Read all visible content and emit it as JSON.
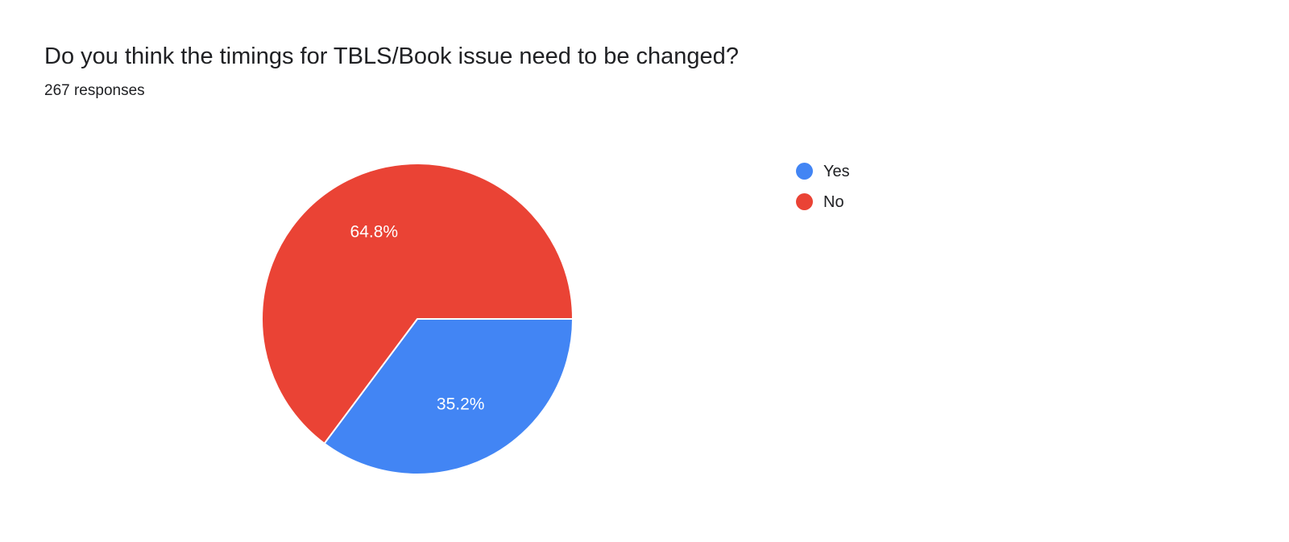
{
  "header": {
    "title": "Do you think the timings for TBLS/Book issue need to be changed?",
    "responses": "267 responses"
  },
  "chart_data": {
    "type": "pie",
    "title": "Do you think the timings for TBLS/Book issue need to be changed?",
    "responses_count": 267,
    "categories": [
      "Yes",
      "No"
    ],
    "values": [
      35.2,
      64.8
    ],
    "value_labels": [
      "35.2%",
      "64.8%"
    ],
    "colors": [
      "#4285f4",
      "#ea4335"
    ],
    "legend_position": "right",
    "start_angle": "east",
    "direction": "clockwise"
  }
}
